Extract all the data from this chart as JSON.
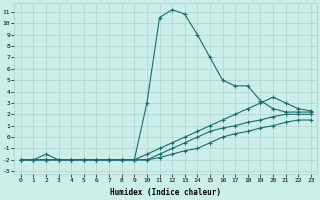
{
  "xlabel": "Humidex (Indice chaleur)",
  "xlim": [
    -0.5,
    23.5
  ],
  "ylim": [
    -3.2,
    11.8
  ],
  "xticks": [
    0,
    1,
    2,
    3,
    4,
    5,
    6,
    7,
    8,
    9,
    10,
    11,
    12,
    13,
    14,
    15,
    16,
    17,
    18,
    19,
    20,
    21,
    22,
    23
  ],
  "yticks": [
    -3,
    -2,
    -1,
    0,
    1,
    2,
    3,
    4,
    5,
    6,
    7,
    8,
    9,
    10,
    11
  ],
  "background_color": "#cceee8",
  "grid_color": "#aacccc",
  "line_color": "#1a6b6b",
  "marker": "+",
  "markersize": 3,
  "linewidth": 0.8,
  "curve1_x": [
    0,
    1,
    2,
    3,
    4,
    5,
    6,
    7,
    8,
    9,
    10,
    11,
    12,
    13,
    14,
    15,
    16,
    17,
    18,
    19,
    20,
    21,
    22,
    23
  ],
  "curve1_y": [
    -2,
    -2,
    -1.5,
    -2,
    -2,
    -2,
    -2,
    -2,
    -2,
    -2,
    3,
    10.5,
    11.2,
    10.8,
    9,
    7,
    5,
    4.5,
    4.5,
    3.2,
    2.5,
    2.2,
    2.2,
    2.2
  ],
  "curve2_x": [
    0,
    1,
    2,
    3,
    4,
    5,
    6,
    7,
    8,
    9,
    10,
    11,
    12,
    13,
    14,
    15,
    16,
    17,
    18,
    19,
    20,
    21,
    22,
    23
  ],
  "curve2_y": [
    -2,
    -2,
    -2,
    -2,
    -2,
    -2,
    -2,
    -2,
    -2,
    -2,
    -1.5,
    -1,
    -0.5,
    0,
    0.5,
    1,
    1.5,
    2,
    2.5,
    3,
    3.5,
    3,
    2.5,
    2.3
  ],
  "curve3_x": [
    0,
    1,
    2,
    3,
    4,
    5,
    6,
    7,
    8,
    9,
    10,
    11,
    12,
    13,
    14,
    15,
    16,
    17,
    18,
    19,
    20,
    21,
    22,
    23
  ],
  "curve3_y": [
    -2,
    -2,
    -2,
    -2,
    -2,
    -2,
    -2,
    -2,
    -2,
    -2,
    -2,
    -1.5,
    -1,
    -0.5,
    0,
    0.5,
    0.8,
    1,
    1.3,
    1.5,
    1.8,
    2,
    2,
    2
  ],
  "curve4_x": [
    0,
    1,
    2,
    3,
    4,
    5,
    6,
    7,
    8,
    9,
    10,
    11,
    12,
    13,
    14,
    15,
    16,
    17,
    18,
    19,
    20,
    21,
    22,
    23
  ],
  "curve4_y": [
    -2,
    -2,
    -2,
    -2,
    -2,
    -2,
    -2,
    -2,
    -2,
    -2,
    -2,
    -1.8,
    -1.5,
    -1.2,
    -1,
    -0.5,
    0,
    0.3,
    0.5,
    0.8,
    1,
    1.3,
    1.5,
    1.5
  ]
}
